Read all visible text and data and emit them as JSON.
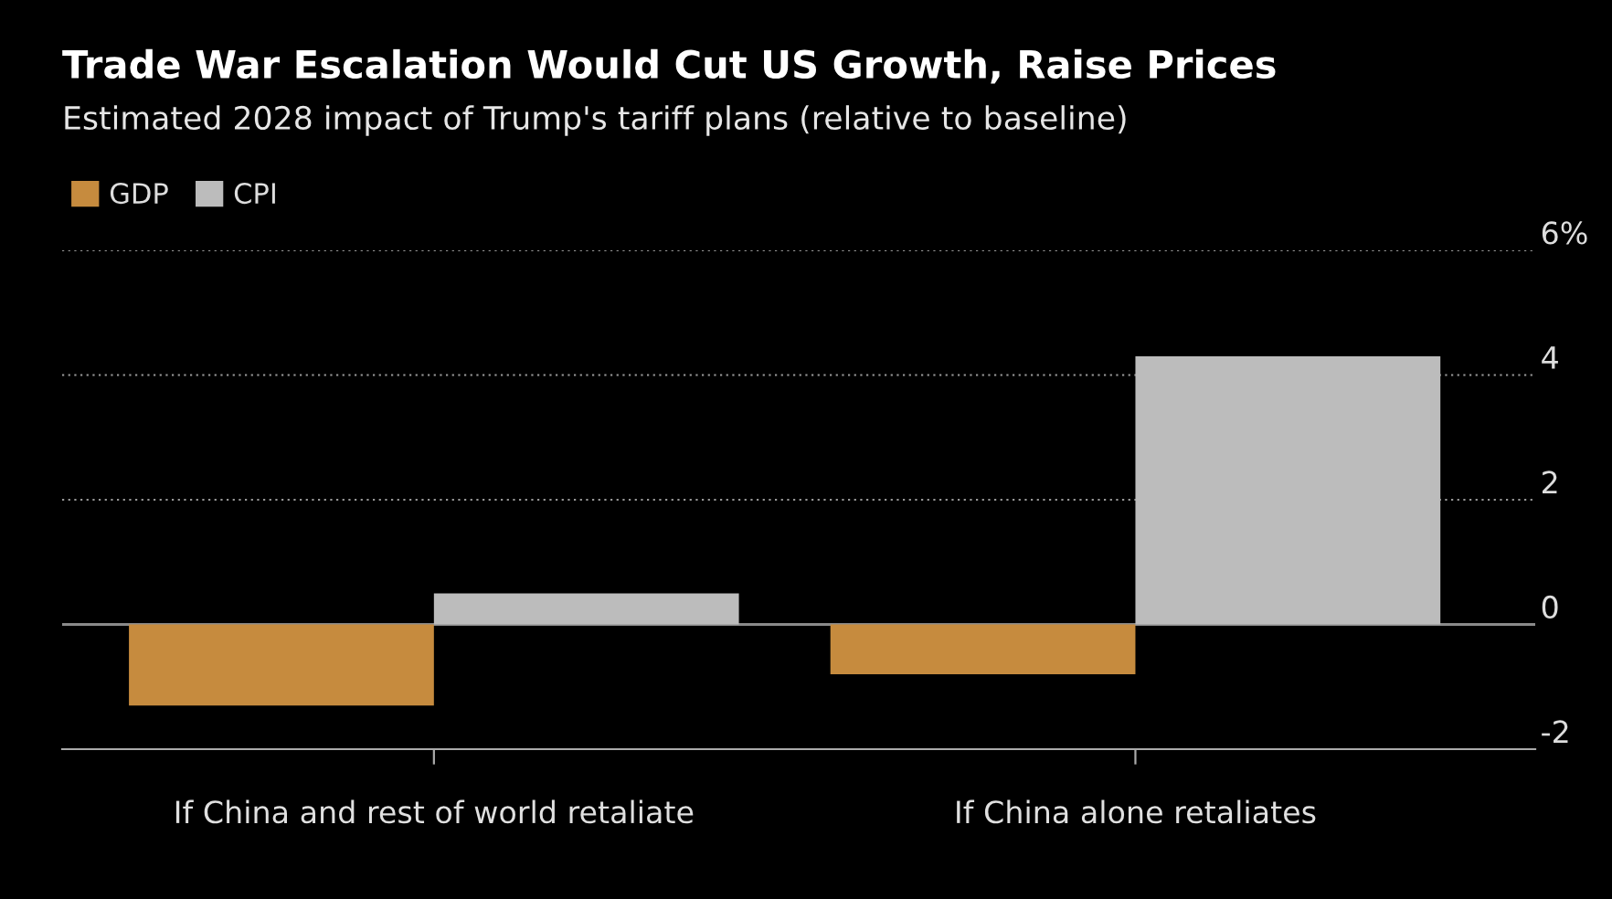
{
  "chart_data": {
    "type": "bar",
    "title": "Trade War Escalation Would Cut US Growth, Raise Prices",
    "subtitle": "Estimated 2028 impact of Trump's tariff plans (relative to baseline)",
    "categories": [
      "If China and rest of world retaliate",
      "If China alone retaliates"
    ],
    "series": [
      {
        "name": "GDP",
        "color": "#c68b3e",
        "values": [
          -1.3,
          -0.8
        ]
      },
      {
        "name": "CPI",
        "color": "#bcbcbc",
        "values": [
          0.5,
          4.3
        ]
      }
    ],
    "ylim": [
      -2,
      6
    ],
    "yticks": [
      {
        "value": -2,
        "label": "-2"
      },
      0,
      2,
      4,
      {
        "value": 6,
        "label": "6%"
      }
    ],
    "ref_lines": [
      {
        "axis": "y",
        "value": 0,
        "color": "#8a8a8a",
        "line_style": "solid"
      }
    ],
    "grid": "y",
    "legend": "top left"
  }
}
